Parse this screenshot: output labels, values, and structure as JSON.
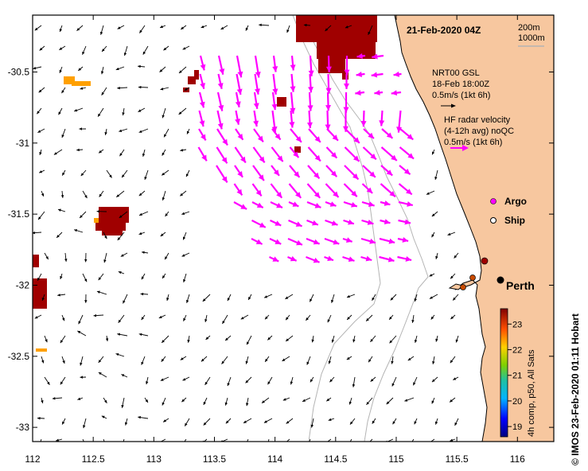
{
  "title": "21-Feb-2020 04Z",
  "depth_legend": {
    "line1": "200m",
    "line2": "1000m"
  },
  "nrt_legend": {
    "line1": "NRT00 GSL",
    "line2": "18-Feb 18:00Z",
    "line3": "0.5m/s (1kt 6h)"
  },
  "hf_legend": {
    "line1": "HF radar velocity",
    "line2": "(4-12h avg) noQC",
    "line3": "0.5m/s (1kt 6h)"
  },
  "platform_legend": {
    "argo": "Argo",
    "ship": "Ship"
  },
  "city_label": "Perth",
  "colorbar": {
    "ticks": [
      "23",
      "22",
      "21",
      "20",
      "19"
    ],
    "label": "4h comp, p50, All Sats",
    "range": [
      18.6,
      23.6
    ]
  },
  "credit": "©  IMOS 23-Feb-2020 01:11 Hobart",
  "x_axis": {
    "ticks": [
      "112",
      "112.5",
      "113",
      "113.5",
      "114",
      "114.5",
      "115",
      "115.5",
      "116"
    ]
  },
  "y_axis": {
    "ticks": [
      "-30.5",
      "-31",
      "-31.5",
      "-32",
      "-32.5",
      "-33"
    ]
  },
  "map_extent": {
    "lon": [
      112.0,
      116.3
    ],
    "lat": [
      -33.1,
      -30.1
    ]
  },
  "colors": {
    "land": "#f7c79f",
    "hf_vector": "#ff00ff",
    "sst_hot": "#a00000",
    "sst_warm": "#ffa000",
    "bathy": "#b4b4b4"
  }
}
